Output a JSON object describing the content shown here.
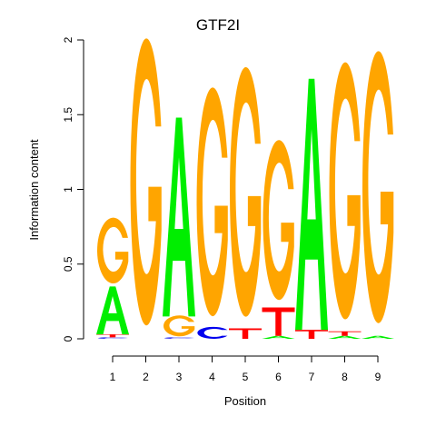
{
  "chart_data": {
    "type": "sequence-logo",
    "title": "GTF2I",
    "xlabel": "Position",
    "ylabel": "Information content",
    "ylim": [
      0,
      2
    ],
    "y_ticks": [
      "0",
      "0.5",
      "1",
      "1.5",
      "2"
    ],
    "x_ticks": [
      "1",
      "2",
      "3",
      "4",
      "5",
      "6",
      "7",
      "8",
      "9"
    ],
    "colors": {
      "A": "#00ee00",
      "C": "#0000ee",
      "G": "#ffa500",
      "T": "#ff0000"
    },
    "positions": [
      {
        "x": "1",
        "letters": [
          {
            "base": "C",
            "height": 0.01
          },
          {
            "base": "T",
            "height": 0.02
          },
          {
            "base": "A",
            "height": 0.32
          },
          {
            "base": "G",
            "height": 0.44
          }
        ]
      },
      {
        "x": "2",
        "letters": [
          {
            "base": "G",
            "height": 1.92
          }
        ]
      },
      {
        "x": "3",
        "letters": [
          {
            "base": "C",
            "height": 0.01
          },
          {
            "base": "G",
            "height": 0.14
          },
          {
            "base": "A",
            "height": 1.33
          }
        ]
      },
      {
        "x": "4",
        "letters": [
          {
            "base": "C",
            "height": 0.08
          },
          {
            "base": "G",
            "height": 1.53
          }
        ]
      },
      {
        "x": "5",
        "letters": [
          {
            "base": "T",
            "height": 0.07
          },
          {
            "base": "G",
            "height": 1.67
          }
        ]
      },
      {
        "x": "6",
        "letters": [
          {
            "base": "A",
            "height": 0.02
          },
          {
            "base": "T",
            "height": 0.19
          },
          {
            "base": "G",
            "height": 1.07
          }
        ]
      },
      {
        "x": "7",
        "letters": [
          {
            "base": "T",
            "height": 0.06
          },
          {
            "base": "A",
            "height": 1.68
          }
        ]
      },
      {
        "x": "8",
        "letters": [
          {
            "base": "A",
            "height": 0.02
          },
          {
            "base": "T",
            "height": 0.03
          },
          {
            "base": "G",
            "height": 1.72
          }
        ]
      },
      {
        "x": "9",
        "letters": [
          {
            "base": "A",
            "height": 0.02
          },
          {
            "base": "G",
            "height": 1.82
          }
        ]
      }
    ]
  }
}
